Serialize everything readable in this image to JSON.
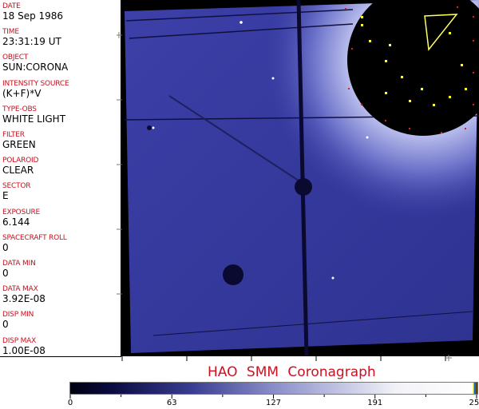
{
  "header_fields": [
    {
      "label": "DATE",
      "value": "18 Sep 1986"
    },
    {
      "label": "TIME",
      "value": "23:31:19 UT"
    },
    {
      "label": "OBJECT",
      "value": "SUN:CORONA"
    },
    {
      "label": "INTENSITY SOURCE",
      "value": "(K+F)*V"
    },
    {
      "label": "TYPE-OBS",
      "value": "WHITE LIGHT"
    },
    {
      "label": "FILTER",
      "value": "GREEN"
    },
    {
      "label": "POLAROID",
      "value": "CLEAR"
    },
    {
      "label": "SECTOR",
      "value": "E"
    },
    {
      "label": "EXPOSURE",
      "value": "6.144"
    },
    {
      "label": "SPACECRAFT ROLL",
      "value": "0"
    },
    {
      "label": "DATA MIN",
      "value": "0"
    },
    {
      "label": "DATA MAX",
      "value": "3.92E-08"
    },
    {
      "label": "DISP MIN",
      "value": "0"
    },
    {
      "label": "DISP MAX",
      "value": "1.00E-08"
    }
  ],
  "title": "HAO  SMM Coronagraph",
  "colorbar": {
    "ticks": [
      "0",
      "63",
      "127",
      "191",
      "255"
    ],
    "min": 0,
    "max": 255,
    "colors": {
      "low": "#000010",
      "mid": "#8a8ec8",
      "high": "#ffffff",
      "label": "#c8101e"
    }
  }
}
